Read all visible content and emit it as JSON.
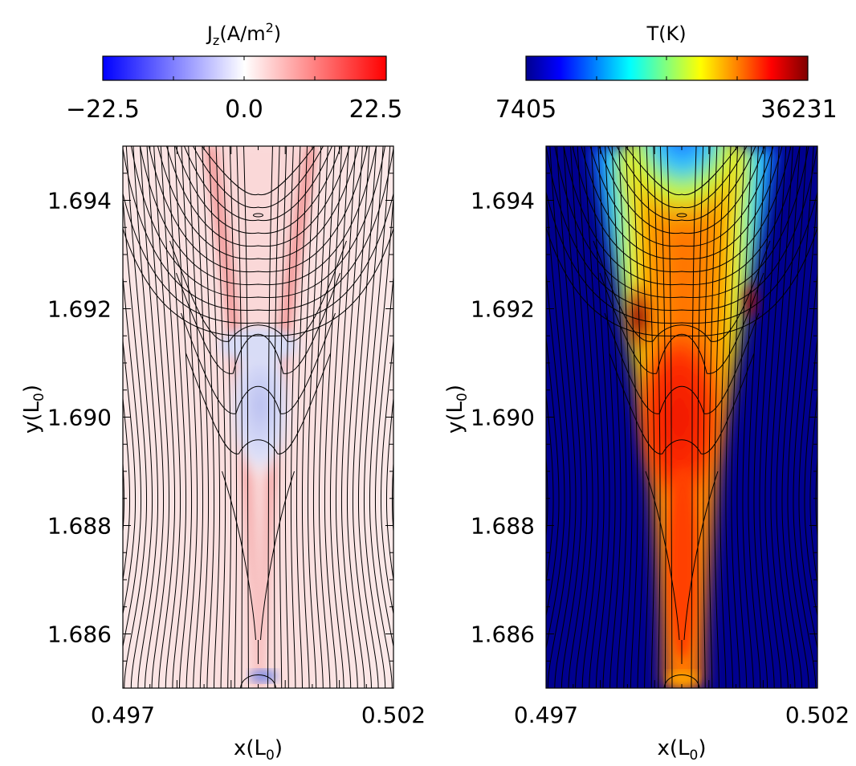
{
  "chart_data": [
    {
      "type": "heatmap",
      "panel": "left",
      "colorbar": {
        "label_main": "J",
        "label_sub": "z",
        "label_rest": "(A/m",
        "label_sup": "2",
        "label_end": ")",
        "min_label": "−22.5",
        "mid_label": "0.0",
        "max_label": "22.5",
        "range": [
          -22.5,
          22.5
        ],
        "colormap": [
          "#0000ff",
          "#ffffff",
          "#ff0000"
        ]
      },
      "xlabel": "x(L",
      "xlabel_sub": "0",
      "xlabel_end": ")",
      "ylabel": "y(L",
      "ylabel_sub": "0",
      "ylabel_end": ")",
      "xticks": [
        "0.497",
        "0.502"
      ],
      "xlim": [
        0.497,
        0.502
      ],
      "yticks": [
        "1.686",
        "1.688",
        "1.690",
        "1.692",
        "1.694"
      ],
      "ylim": [
        1.685,
        1.695
      ],
      "contours": "magnetic field lines (black)"
    },
    {
      "type": "heatmap",
      "panel": "right",
      "colorbar": {
        "label": "T(K)",
        "min_label": "7405",
        "max_label": "36231",
        "range": [
          7405,
          36231
        ],
        "colormap": [
          "#00008f",
          "#0000ff",
          "#00ffff",
          "#ffff00",
          "#ff7f00",
          "#ff0000",
          "#7f0000"
        ]
      },
      "xlabel": "x(L",
      "xlabel_sub": "0",
      "xlabel_end": ")",
      "ylabel": "y(L",
      "ylabel_sub": "0",
      "ylabel_end": ")",
      "xticks": [
        "0.497",
        "0.502"
      ],
      "xlim": [
        0.497,
        0.502
      ],
      "yticks": [
        "1.686",
        "1.688",
        "1.690",
        "1.692",
        "1.694"
      ],
      "ylim": [
        1.685,
        1.695
      ],
      "contours": "magnetic field lines (black)"
    }
  ]
}
